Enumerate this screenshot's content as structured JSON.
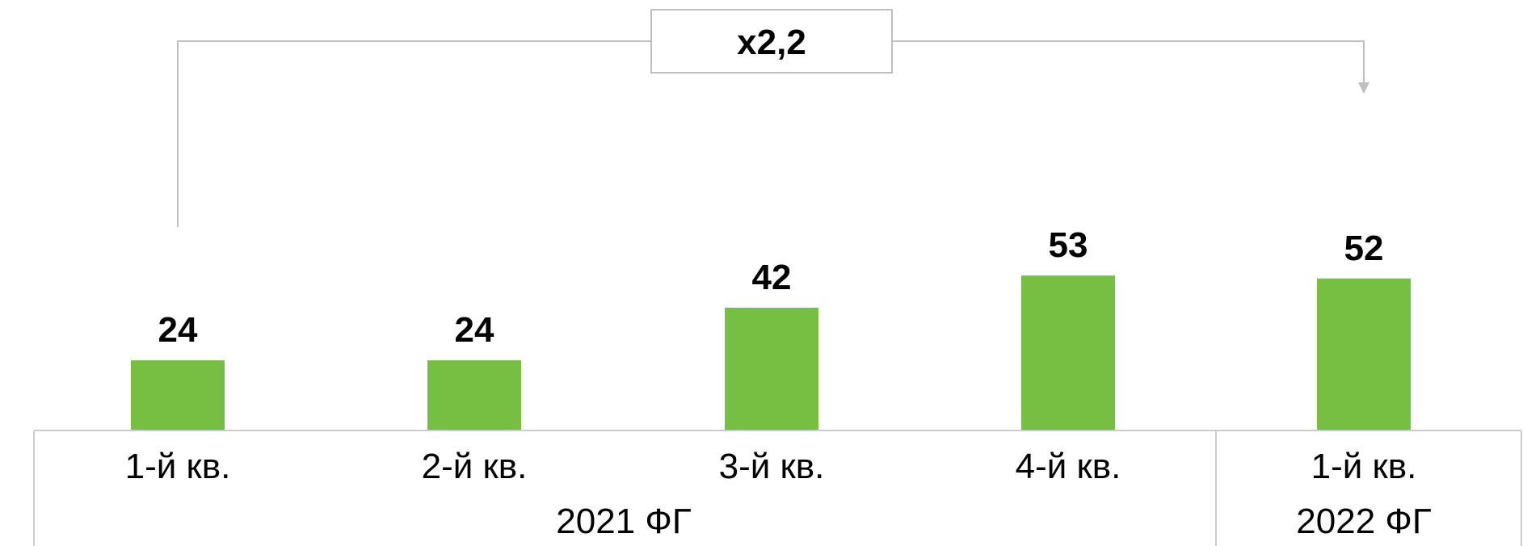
{
  "chart_data": {
    "type": "bar",
    "categories": [
      "1-й кв.",
      "2-й кв.",
      "3-й кв.",
      "4-й кв.",
      "1-й кв."
    ],
    "values": [
      24,
      24,
      42,
      53,
      52
    ],
    "groups": [
      {
        "label": "2021 ФГ",
        "categories": [
          0,
          1,
          2,
          3
        ]
      },
      {
        "label": "2022 ФГ",
        "categories": [
          4
        ]
      }
    ],
    "annotation": {
      "label": "x2,2",
      "from_category": 0,
      "to_category": 4
    },
    "ylim": [
      0,
      60
    ],
    "grid": false,
    "legend": "none",
    "colors": {
      "bar": "#76bf43",
      "axis_box": "#cccccc",
      "annotation_line": "#bfbfbf",
      "text": "#000000"
    }
  }
}
